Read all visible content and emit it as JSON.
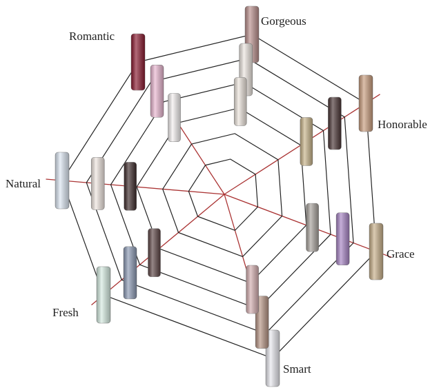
{
  "labels": {
    "romantic": "Romantic",
    "gorgeous": "Gorgeous",
    "honorable": "Honorable",
    "grace": "Grace",
    "smart": "Smart",
    "fresh": "Fresh",
    "natural": "Natural"
  }
}
